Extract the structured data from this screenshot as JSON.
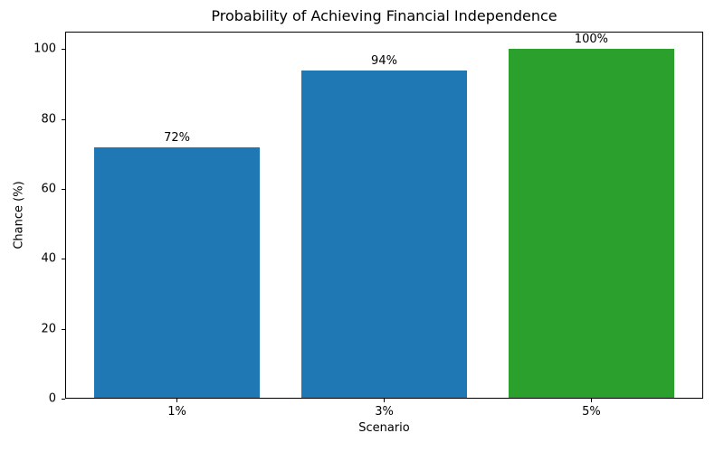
{
  "chart_data": {
    "type": "bar",
    "title": "Probability of Achieving Financial Independence",
    "xlabel": "Scenario",
    "ylabel": "Chance (%)",
    "categories": [
      "1%",
      "3%",
      "5%"
    ],
    "values": [
      72,
      94,
      100
    ],
    "bar_labels": [
      "72%",
      "94%",
      "100%"
    ],
    "bar_colors": [
      "#1f77b4",
      "#1f77b4",
      "#2ca02c"
    ],
    "yticks": [
      0,
      20,
      40,
      60,
      80,
      100
    ],
    "ylim": [
      0,
      105
    ],
    "grid": false,
    "legend": null,
    "background": "#ffffff",
    "spine_color": "#000000",
    "text_color": "#000000"
  }
}
